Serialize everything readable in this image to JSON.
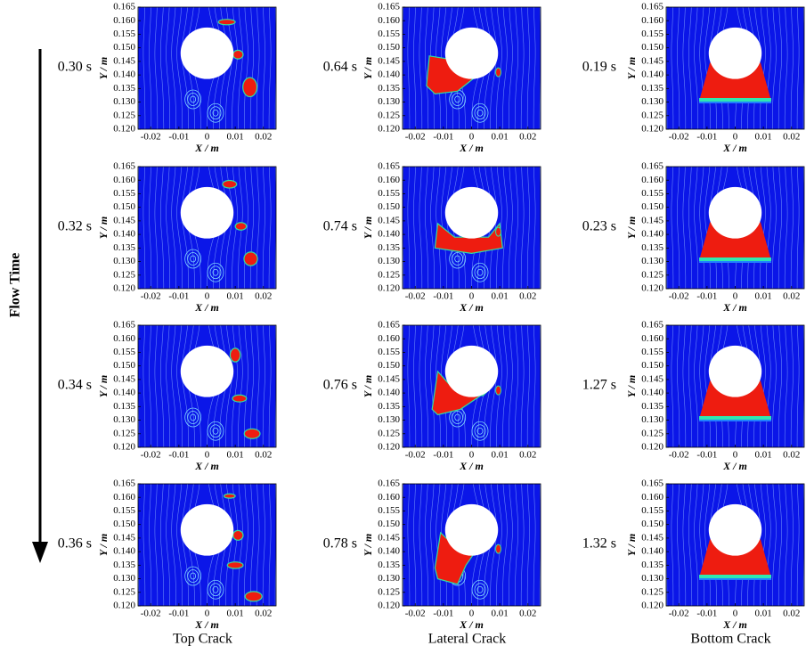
{
  "figure": {
    "side_label": "Flow Time",
    "x_label": "X / m",
    "y_label": "Y / m",
    "xlim": [
      -0.0245,
      0.0245
    ],
    "ylim": [
      0.12,
      0.165
    ],
    "xticks": [
      -0.02,
      -0.01,
      0,
      0.01,
      0.02
    ],
    "yticks": [
      {
        "value": 0.12,
        "label": "0.120"
      },
      {
        "value": 0.125,
        "label": "0.125"
      },
      {
        "value": 0.13,
        "label": "0.130"
      },
      {
        "value": 0.135,
        "label": "0.135"
      },
      {
        "value": 0.14,
        "label": "0.140"
      },
      {
        "value": 0.145,
        "label": "0.145"
      },
      {
        "value": 0.15,
        "label": "0.150"
      },
      {
        "value": 0.155,
        "label": "0.155"
      },
      {
        "value": 0.16,
        "label": "0.160"
      },
      {
        "value": 0.165,
        "label": "0.165"
      }
    ],
    "columns": [
      {
        "title": "Top Crack",
        "times": [
          "0.30 s",
          "0.32 s",
          "0.34 s",
          "0.36 s"
        ]
      },
      {
        "title": "Lateral Crack",
        "times": [
          "0.64 s",
          "0.74 s",
          "0.76 s",
          "0.78 s"
        ]
      },
      {
        "title": "Bottom Crack",
        "times": [
          "0.19 s",
          "0.23 s",
          "1.27 s",
          "1.32 s"
        ]
      }
    ]
  }
}
